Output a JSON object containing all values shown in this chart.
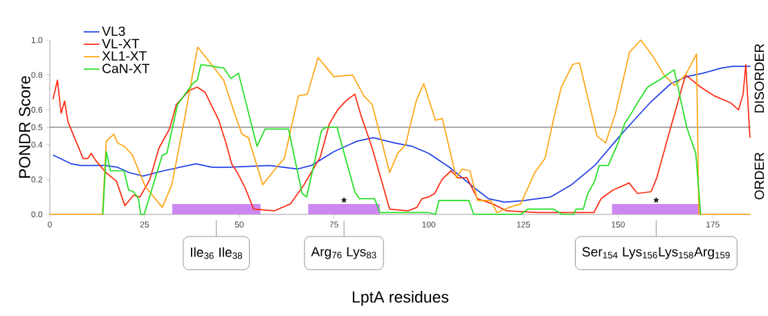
{
  "chart_data": {
    "type": "line",
    "xlabel": "LptA residues",
    "ylabel": "PONDR Score",
    "xlim": [
      0,
      185
    ],
    "xticks": [
      0,
      25,
      50,
      75,
      100,
      125,
      150,
      175
    ],
    "ylim": [
      0,
      1
    ],
    "yticks": [
      {
        "value": 0,
        "label": "0.0"
      },
      {
        "value": 0.2,
        "label": "0.2"
      },
      {
        "value": 0.4,
        "label": "0.4"
      },
      {
        "value": 0.5,
        "label": "0.5"
      },
      {
        "value": 0.6,
        "label": "0.6"
      },
      {
        "value": 0.8,
        "label": "0.8"
      },
      {
        "value": 1,
        "label": "1.0"
      }
    ],
    "legend": "top left",
    "marker": "none",
    "line_style": "solid",
    "series": [
      {
        "name": "VL3",
        "color": "#2040e8",
        "x": [
          0.85,
          5.7,
          8.1,
          14.8,
          17.9,
          20.9,
          24.6,
          30,
          34.3,
          38.6,
          42.8,
          47.1,
          58,
          65.3,
          69,
          75,
          81.1,
          85.4,
          90.9,
          95.7,
          100,
          105.5,
          112.2,
          115.8,
          120.1,
          125.5,
          132.2,
          137.7,
          143.8,
          149.3,
          151.7,
          158.4,
          163.9,
          168.1,
          172.4,
          177.3,
          180.3,
          184.9
        ],
        "values": [
          0.34,
          0.29,
          0.28,
          0.28,
          0.27,
          0.24,
          0.22,
          0.25,
          0.27,
          0.29,
          0.27,
          0.27,
          0.28,
          0.26,
          0.28,
          0.36,
          0.42,
          0.44,
          0.41,
          0.39,
          0.35,
          0.27,
          0.15,
          0.09,
          0.07,
          0.08,
          0.1,
          0.17,
          0.28,
          0.42,
          0.48,
          0.64,
          0.75,
          0.79,
          0.81,
          0.84,
          0.85,
          0.85
        ]
      },
      {
        "name": "VL-XT",
        "color": "#ff2a10",
        "x": [
          0.85,
          2,
          3,
          3.9,
          4.8,
          6.9,
          8.8,
          10,
          10.9,
          12.1,
          14.8,
          17.6,
          19.8,
          22.1,
          23.8,
          26.4,
          28.8,
          31.6,
          33.4,
          36.7,
          38.9,
          41,
          44.6,
          46.5,
          48,
          49.5,
          51.6,
          53.8,
          59.2,
          63.5,
          67.1,
          71.4,
          73.8,
          76,
          78.1,
          80.5,
          82.1,
          85.1,
          89.7,
          94.5,
          96.9,
          98.2,
          100,
          101.6,
          103.5,
          105.9,
          107.7,
          110.1,
          112.9,
          116.9,
          120.6,
          129.1,
          143.6,
          145.5,
          148.7,
          152.9,
          155.1,
          158.7,
          160.2,
          163.9,
          167.8,
          171.8,
          175.4,
          179.7,
          181.8,
          183,
          183.7,
          184.8
        ],
        "values": [
          0.66,
          0.77,
          0.58,
          0.65,
          0.53,
          0.42,
          0.32,
          0.32,
          0.35,
          0.31,
          0.24,
          0.19,
          0.05,
          0.11,
          0.1,
          0.2,
          0.38,
          0.49,
          0.63,
          0.71,
          0.73,
          0.7,
          0.54,
          0.41,
          0.29,
          0.24,
          0.15,
          0.03,
          0.02,
          0.06,
          0.17,
          0.33,
          0.52,
          0.6,
          0.65,
          0.69,
          0.57,
          0.38,
          0.03,
          0.02,
          0.04,
          0.09,
          0.1,
          0.12,
          0.2,
          0.25,
          0.21,
          0.21,
          0.09,
          0.06,
          0.02,
          0.01,
          0.01,
          0.09,
          0.14,
          0.18,
          0.12,
          0.13,
          0.21,
          0.5,
          0.8,
          0.73,
          0.68,
          0.64,
          0.6,
          0.69,
          0.86,
          0.44
        ]
      },
      {
        "name": "XL1-XT",
        "color": "#ffa510",
        "x": [
          0,
          13.9,
          14.9,
          16.9,
          17.9,
          19.7,
          21.8,
          25.2,
          29.7,
          32.2,
          35.5,
          39,
          41.6,
          45.9,
          48.3,
          50.7,
          52.4,
          56.2,
          60.2,
          61.9,
          65.6,
          68,
          70.8,
          75,
          79.9,
          82.9,
          85.1,
          89.7,
          91.8,
          93.9,
          96.7,
          98.7,
          101.8,
          103.6,
          107.3,
          108.8,
          110.9,
          112.9,
          116.4,
          118,
          121.3,
          124.3,
          128,
          130.7,
          132.9,
          135,
          138,
          139.8,
          144.4,
          146.7,
          149.3,
          153,
          156,
          159.1,
          162.1,
          164.9,
          167.8,
          170.7,
          171.3,
          184.9
        ],
        "values": [
          0,
          0,
          0.42,
          0.46,
          0.41,
          0.39,
          0.34,
          0.16,
          0.04,
          0.17,
          0.54,
          0.96,
          0.89,
          0.77,
          0.61,
          0.46,
          0.44,
          0.17,
          0.28,
          0.32,
          0.68,
          0.69,
          0.9,
          0.79,
          0.8,
          0.68,
          0.63,
          0.24,
          0.35,
          0.4,
          0.65,
          0.75,
          0.54,
          0.55,
          0.21,
          0.26,
          0.25,
          0.08,
          0.08,
          0.01,
          0.04,
          0.06,
          0.24,
          0.32,
          0.54,
          0.73,
          0.86,
          0.87,
          0.45,
          0.41,
          0.58,
          0.93,
          1.0,
          0.91,
          0.8,
          0.74,
          0.8,
          0.92,
          0,
          0
        ]
      },
      {
        "name": "CaN-XT",
        "color": "#22e022",
        "x": [
          14,
          14.9,
          16,
          19.6,
          20.8,
          22.1,
          23.4,
          24,
          24.9,
          29.7,
          30.9,
          33.7,
          37.7,
          38.9,
          39.9,
          45.9,
          47.8,
          49.8,
          54.7,
          56.8,
          63,
          66.6,
          67.8,
          71.7,
          72.9,
          75.8,
          76.8,
          80.5,
          81.7,
          85.7,
          87.2,
          100,
          101.8,
          102.7,
          110.6,
          111.9,
          124.3,
          126.1,
          132.9,
          135.3,
          138.3,
          138.9,
          140.8,
          142,
          143.8,
          145,
          147.4,
          150,
          151.7,
          153.5,
          155.1,
          157.8,
          161.5,
          164.8,
          168.1,
          170.5,
          171.8
        ],
        "values": [
          0,
          0.36,
          0.25,
          0.25,
          0.14,
          0.13,
          0.09,
          0,
          0,
          0.34,
          0.35,
          0.63,
          0.75,
          0.77,
          0.86,
          0.84,
          0.78,
          0.81,
          0.39,
          0.49,
          0.49,
          0.12,
          0.1,
          0.48,
          0.5,
          0.5,
          0.42,
          0.13,
          0.09,
          0.09,
          0.01,
          0.01,
          0,
          0.08,
          0.08,
          0,
          0,
          0.03,
          0.03,
          0,
          0,
          0.03,
          0.03,
          0.12,
          0.19,
          0.28,
          0.28,
          0.41,
          0.52,
          0.58,
          0.64,
          0.73,
          0.78,
          0.83,
          0.5,
          0.35,
          0
        ]
      }
    ],
    "ref_lines": [
      {
        "axis": "y",
        "value": 0.5,
        "color": "#555555"
      }
    ],
    "bands": [
      {
        "axis": "x",
        "from": 32.3,
        "to": 55.6,
        "color": "#cc88f0"
      },
      {
        "axis": "x",
        "from": 68.2,
        "to": 87.1,
        "color": "#cc88f0"
      },
      {
        "axis": "x",
        "from": 148.4,
        "to": 171.7,
        "color": "#cc88f0"
      }
    ],
    "annotations": [
      "DISORDER",
      "ORDER",
      "*",
      "*",
      "Ile$_{36}$ Ile$_{38}$",
      "Arg$_{76}$ Lys$_{83}$",
      "Ser$_{154}$ Lys$_{156}$Lys$_{158}$Arg$_{159}$"
    ]
  }
}
